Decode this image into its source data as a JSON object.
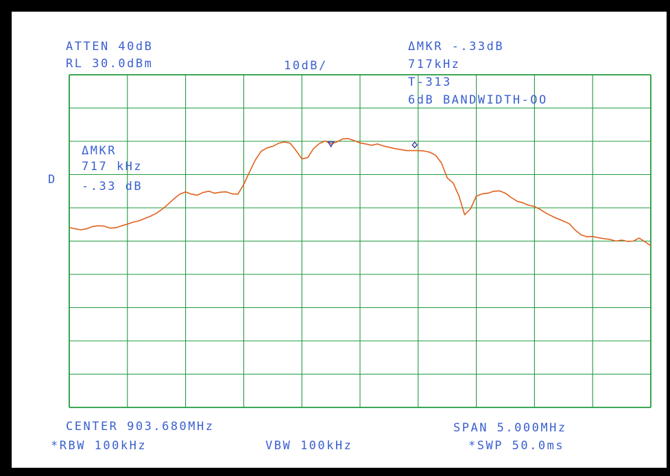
{
  "header": {
    "atten": "ATTEN 40dB",
    "ref_level": "RL 30.0dBm",
    "scale": "10dB/",
    "delta_marker_value": "ΔMKR -.33dB",
    "delta_marker_freq": "717kHz",
    "trace_id": "T-313",
    "bandwidth": "6dB BANDWIDTH-OO"
  },
  "marker_box": {
    "title": "ΔMKR",
    "freq": "717 kHz",
    "value": "-.33 dB"
  },
  "display_mode": "D",
  "footer": {
    "center": "CENTER 903.680MHz",
    "span": "SPAN 5.000MHz",
    "rbw": "*RBW 100kHz",
    "vbw": "VBW 100kHz",
    "sweep": "*SWP 50.0ms"
  },
  "colors": {
    "grid": "#1f9a3c",
    "text": "#3a5fd0",
    "trace": "#e0601c",
    "marker": "#3a3aa0"
  },
  "chart_data": {
    "type": "line",
    "xlabel": "",
    "ylabel": "",
    "x_unit": "MHz",
    "y_unit": "dBm",
    "x_center": 903.68,
    "x_span": 5.0,
    "xlim": [
      901.18,
      906.18
    ],
    "ylim": [
      -70,
      30
    ],
    "ref_level": 30,
    "scale_db_per_div": 10,
    "grid": true,
    "x_divisions": 10,
    "y_divisions": 10,
    "series": [
      {
        "x": [
          901.18,
          901.23,
          901.28,
          901.33,
          901.38,
          901.43,
          901.48,
          901.53,
          901.58,
          901.63,
          901.68,
          901.73,
          901.78,
          901.83,
          901.88,
          901.93,
          901.98,
          902.03,
          902.08,
          902.13,
          902.18,
          902.23,
          902.28,
          902.33,
          902.38,
          902.43,
          902.48,
          902.53,
          902.58,
          902.63,
          902.68,
          902.73,
          902.78,
          902.83,
          902.88,
          902.93,
          902.98,
          903.03,
          903.08,
          903.13,
          903.18,
          903.23,
          903.28,
          903.33,
          903.38,
          903.43,
          903.48,
          903.53,
          903.58,
          903.63,
          903.68,
          903.73,
          903.78,
          903.83,
          903.88,
          903.93,
          903.98,
          904.03,
          904.08,
          904.13,
          904.18,
          904.23,
          904.28,
          904.33,
          904.38,
          904.43,
          904.48,
          904.53,
          904.58,
          904.63,
          904.68,
          904.73,
          904.78,
          904.83,
          904.88,
          904.93,
          904.98,
          905.03,
          905.08,
          905.13,
          905.18,
          905.23,
          905.28,
          905.33,
          905.38,
          905.43,
          905.48,
          905.53,
          905.58,
          905.63,
          905.68,
          905.73,
          905.78,
          905.83,
          905.88,
          905.93,
          905.98,
          906.03,
          906.08,
          906.13,
          906.18
        ],
        "y": [
          -15.9,
          -16.3,
          -16.6,
          -16.3,
          -15.6,
          -15.4,
          -15.5,
          -16.1,
          -16.0,
          -15.4,
          -14.9,
          -14.3,
          -13.9,
          -13.2,
          -12.5,
          -11.6,
          -10.4,
          -8.9,
          -7.3,
          -5.9,
          -5.2,
          -5.9,
          -6.2,
          -5.4,
          -5.0,
          -5.6,
          -5.3,
          -5.2,
          -5.8,
          -5.9,
          -3.0,
          0.8,
          4.4,
          7.0,
          8.0,
          8.5,
          9.4,
          9.8,
          9.4,
          7.2,
          4.7,
          5.1,
          7.8,
          9.3,
          10.1,
          9.2,
          9.8,
          10.7,
          10.8,
          10.2,
          9.5,
          9.2,
          8.8,
          9.2,
          8.6,
          8.2,
          7.8,
          7.5,
          7.2,
          7.2,
          7.2,
          7.1,
          6.7,
          5.8,
          3.5,
          -1.0,
          -2.5,
          -6.4,
          -12.1,
          -10.3,
          -6.5,
          -5.8,
          -5.6,
          -5.0,
          -4.9,
          -5.6,
          -6.9,
          -8.0,
          -8.5,
          -9.2,
          -9.6,
          -10.5,
          -11.6,
          -12.5,
          -13.3,
          -14.0,
          -14.8,
          -16.7,
          -18.1,
          -18.7,
          -18.6,
          -19.0,
          -19.3,
          -19.5,
          -20.0,
          -19.7,
          -20.1,
          -20.0,
          -19.1,
          -20.2,
          -21.4
        ]
      }
    ],
    "markers": [
      {
        "x": 903.43,
        "y": 9.2,
        "symbol": "triangle-down"
      },
      {
        "x": 904.15,
        "y": 8.9,
        "symbol": "diamond"
      }
    ]
  }
}
